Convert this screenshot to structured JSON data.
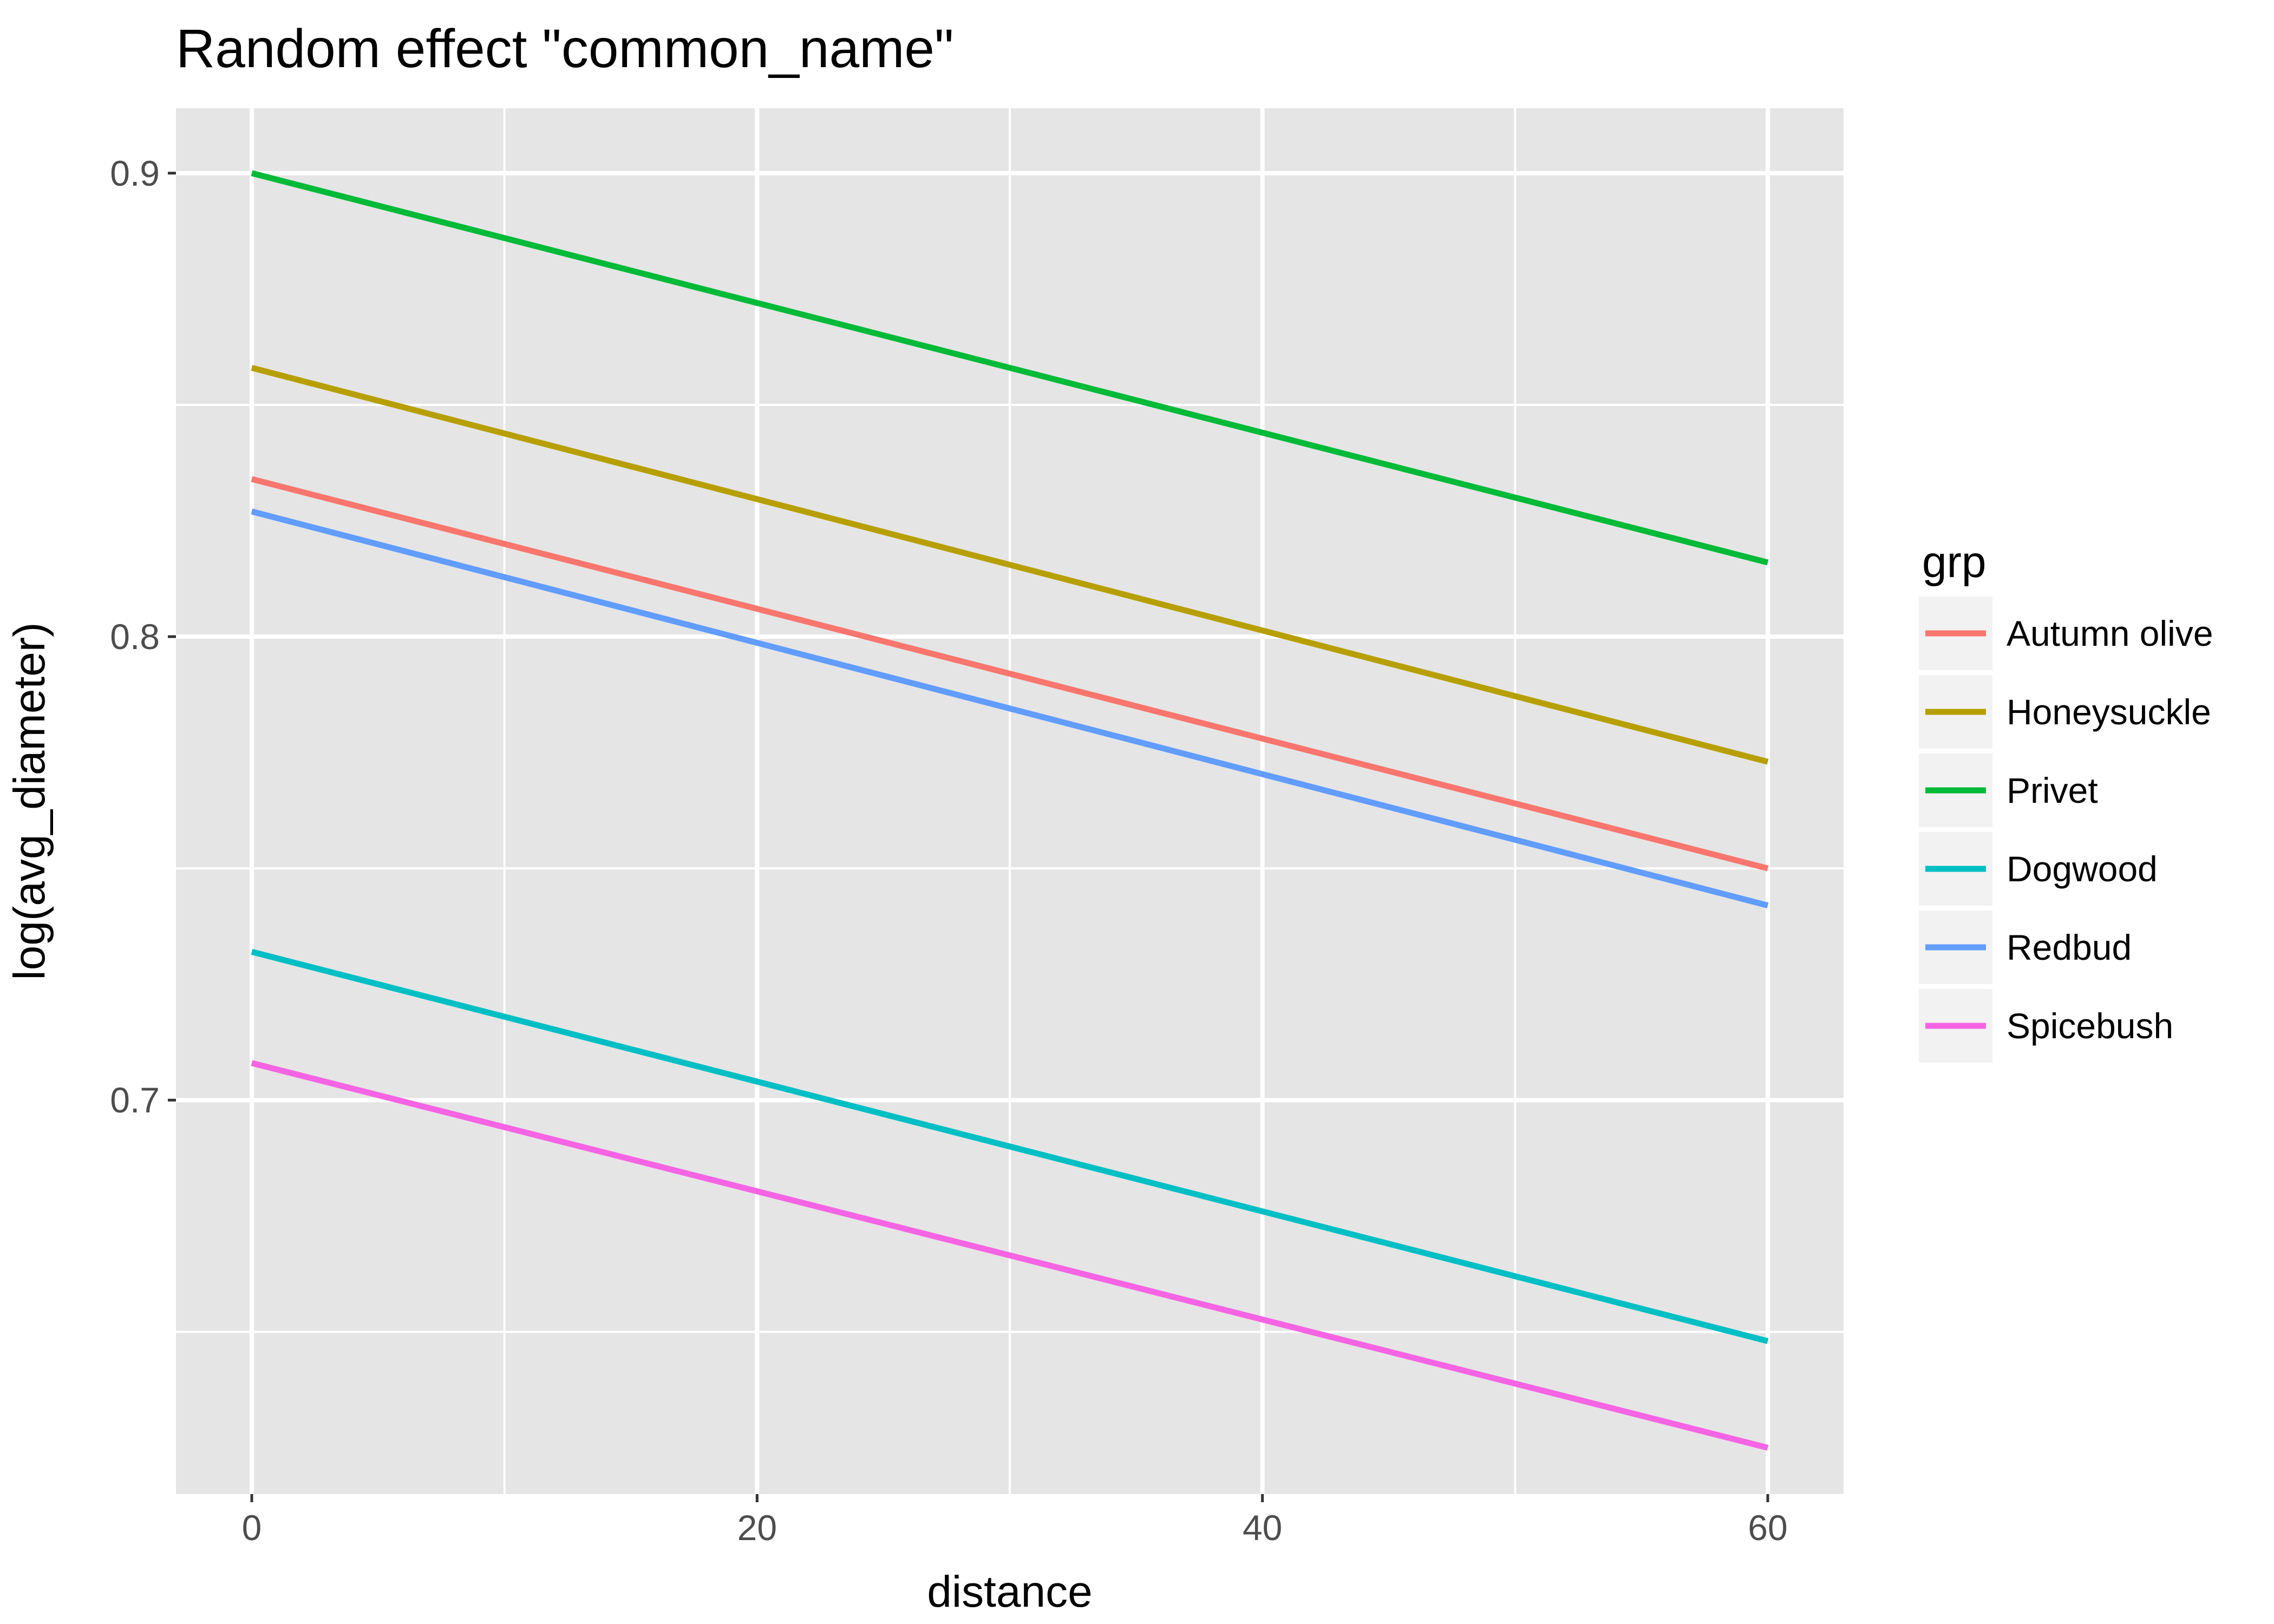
{
  "chart_data": {
    "type": "line",
    "title": "Random effect \"common_name\"",
    "xlabel": "distance",
    "ylabel": "log(avg_diameter)",
    "xlim": [
      -3,
      63
    ],
    "ylim": [
      0.615,
      0.914
    ],
    "x_major_ticks": [
      0,
      20,
      40,
      60
    ],
    "x_minor_ticks": [
      10,
      30,
      50
    ],
    "y_major_ticks": [
      0.7,
      0.8,
      0.9
    ],
    "y_minor_ticks": [
      0.65,
      0.75,
      0.85
    ],
    "x_tick_labels": [
      "0",
      "20",
      "40",
      "60"
    ],
    "y_tick_labels": [
      "0.7",
      "0.8",
      "0.9"
    ],
    "grid": true,
    "panel_background": "#e5e5e5",
    "grid_color": "#ffffff",
    "legend": {
      "title": "grp",
      "position": "right"
    },
    "x": [
      0,
      60
    ],
    "series": [
      {
        "name": "Autumn olive",
        "color": "#F8766D",
        "values": [
          0.834,
          0.75
        ]
      },
      {
        "name": "Honeysuckle",
        "color": "#B79F00",
        "values": [
          0.858,
          0.773
        ]
      },
      {
        "name": "Privet",
        "color": "#00BA38",
        "values": [
          0.9,
          0.816
        ]
      },
      {
        "name": "Dogwood",
        "color": "#00BFC4",
        "values": [
          0.732,
          0.648
        ]
      },
      {
        "name": "Redbud",
        "color": "#619CFF",
        "values": [
          0.827,
          0.742
        ]
      },
      {
        "name": "Spicebush",
        "color": "#F564E3",
        "values": [
          0.708,
          0.625
        ]
      }
    ]
  }
}
